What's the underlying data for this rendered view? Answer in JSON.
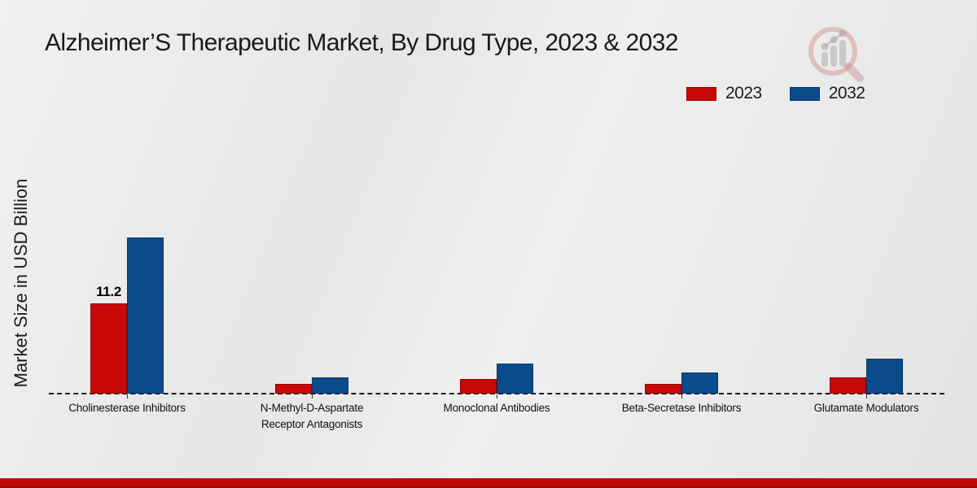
{
  "title": "Alzheimer’S Therapeutic Market, By Drug Type, 2023 & 2032",
  "y_axis_label": "Market Size in USD Billion",
  "legend": [
    {
      "label": "2023",
      "color": "#c90808"
    },
    {
      "label": "2032",
      "color": "#0a4b8c"
    }
  ],
  "watermark_icon": "magnifier-bar-chart-logo-icon",
  "footer_bar_color": "#c00606",
  "chart_data": {
    "type": "bar",
    "categories": [
      "Cholinesterase Inhibitors",
      "N-Methyl-D-Aspartate Receptor Antagonists",
      "Monoclonal Antibodies",
      "Beta-Secretase Inhibitors",
      "Glutamate Modulators"
    ],
    "series": [
      {
        "name": "2023",
        "color": "#c90808",
        "border": "#8a0505",
        "values": [
          11.2,
          1.2,
          1.8,
          1.2,
          2.0
        ]
      },
      {
        "name": "2032",
        "color": "#0a4b8c",
        "border": "#0a3560",
        "values": [
          19.4,
          2.0,
          3.7,
          2.6,
          4.3
        ]
      }
    ],
    "data_labels": [
      {
        "series": "2023",
        "category": "Cholinesterase Inhibitors",
        "text": "11.2"
      }
    ],
    "title": "Alzheimer’S Therapeutic Market, By Drug Type, 2023 & 2032",
    "xlabel": "",
    "ylabel": "Market Size in USD Billion",
    "ylim": [
      0,
      20
    ],
    "grid": false,
    "baseline_style": "dashed",
    "legend_position": "top-right"
  }
}
